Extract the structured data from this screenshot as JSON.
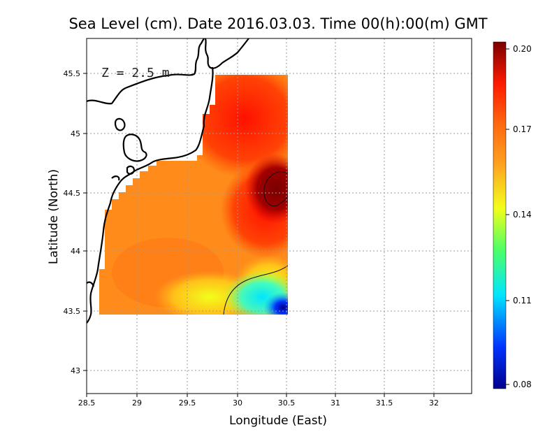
{
  "title": "Sea Level (cm). Date 2016.03.03. Time 00(h):00(m) GMT",
  "xlabel": "Longitude (East)",
  "ylabel": "Latitude (North)",
  "depth_label": "Z = 2.5 m",
  "x_ticks": [
    "28.5",
    "29",
    "29.5",
    "30",
    "30.5",
    "31",
    "31.5",
    "32"
  ],
  "y_ticks": [
    "45.5",
    "45",
    "44.5",
    "44",
    "43.5",
    "43"
  ],
  "colorbar_ticks": [
    "0.20",
    "0.17",
    "0.14",
    "0.11",
    "0.08"
  ],
  "colors": {
    "high": "#7a0000",
    "red": "#ff1a00",
    "orange": "#ff8c1a",
    "yellow": "#f2ff1a",
    "green": "#4dff66",
    "cyan": "#00e6ff",
    "blue": "#0033ff",
    "low": "#00008c"
  },
  "map_data": {
    "lon_range": [
      28.5,
      32.4
    ],
    "lat_range": [
      42.8,
      45.8
    ],
    "field_lon_range": [
      28.62,
      30.55
    ],
    "field_lat_range": [
      43.5,
      45.5
    ],
    "value_range": [
      0.08,
      0.2
    ]
  }
}
